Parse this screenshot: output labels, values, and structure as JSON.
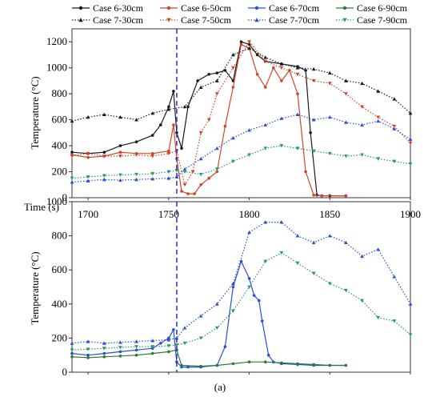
{
  "figure": {
    "caption": "(a)"
  },
  "legend": {
    "entries": [
      {
        "label": "Case 6-30cm",
        "color": "#1a1a1a",
        "marker": "circle",
        "dash": "solid"
      },
      {
        "label": "Case 6-50cm",
        "color": "#d2442a",
        "marker": "circle",
        "dash": "solid"
      },
      {
        "label": "Case 6-70cm",
        "color": "#2a4fd6",
        "marker": "circle",
        "dash": "solid"
      },
      {
        "label": "Case 6-90cm",
        "color": "#2c7a3c",
        "marker": "circle",
        "dash": "solid"
      },
      {
        "label": "Case 7-30cm",
        "color": "#1a1a1a",
        "marker": "triangle-up",
        "dash": "dotted"
      },
      {
        "label": "Case 7-50cm",
        "color": "#d2442a",
        "marker": "triangle-down",
        "dash": "dotted"
      },
      {
        "label": "Case 7-70cm",
        "color": "#2a4fd6",
        "marker": "triangle-up",
        "dash": "dotted"
      },
      {
        "label": "Case 7-90cm",
        "color": "#2c9a6a",
        "marker": "triangle-down",
        "dash": "dotted"
      }
    ]
  },
  "chart_data": [
    {
      "type": "line",
      "panel": "top",
      "xlabel": "Time (s)",
      "ylabel": "Temperature (°C)",
      "xlim": [
        1690,
        1900
      ],
      "ylim": [
        0,
        1300
      ],
      "xticks": [
        1700,
        1750,
        1800,
        1850,
        1900
      ],
      "yticks": [
        0,
        200,
        400,
        600,
        800,
        1000,
        1200
      ],
      "marker_line_x": 1755,
      "marker_line_color": "#2233cc",
      "series": [
        {
          "name": "Case 6-30cm",
          "color": "#1a1a1a",
          "marker": "circle",
          "dash": "solid",
          "x": [
            1690,
            1700,
            1710,
            1720,
            1730,
            1740,
            1745,
            1750,
            1753,
            1755,
            1758,
            1762,
            1768,
            1775,
            1780,
            1785,
            1790,
            1795,
            1800,
            1805,
            1810,
            1820,
            1830,
            1835,
            1838,
            1842,
            1845,
            1850,
            1860
          ],
          "y": [
            350,
            340,
            350,
            400,
            430,
            480,
            560,
            700,
            820,
            500,
            380,
            700,
            900,
            950,
            960,
            980,
            900,
            1200,
            1180,
            1100,
            1050,
            1030,
            1010,
            980,
            500,
            20,
            15,
            15,
            15
          ]
        },
        {
          "name": "Case 6-50cm",
          "color": "#d2442a",
          "marker": "circle",
          "dash": "solid",
          "x": [
            1690,
            1700,
            1710,
            1720,
            1730,
            1740,
            1750,
            1753,
            1755,
            1758,
            1762,
            1766,
            1770,
            1775,
            1780,
            1785,
            1790,
            1795,
            1800,
            1805,
            1810,
            1815,
            1820,
            1825,
            1830,
            1835,
            1840,
            1845,
            1860
          ],
          "y": [
            330,
            310,
            320,
            350,
            340,
            340,
            360,
            560,
            300,
            50,
            30,
            30,
            100,
            150,
            200,
            550,
            850,
            1180,
            1150,
            950,
            850,
            1000,
            900,
            980,
            800,
            200,
            20,
            15,
            15
          ]
        },
        {
          "name": "Case 7-30cm",
          "color": "#1a1a1a",
          "marker": "triangle-up",
          "dash": "dotted",
          "x": [
            1690,
            1700,
            1710,
            1720,
            1730,
            1740,
            1750,
            1760,
            1770,
            1780,
            1790,
            1800,
            1810,
            1820,
            1830,
            1840,
            1850,
            1860,
            1870,
            1880,
            1890,
            1900
          ],
          "y": [
            590,
            620,
            640,
            620,
            600,
            650,
            680,
            700,
            850,
            900,
            1100,
            1150,
            1080,
            1030,
            1000,
            990,
            960,
            900,
            880,
            820,
            760,
            650
          ]
        },
        {
          "name": "Case 7-50cm",
          "color": "#d2442a",
          "marker": "triangle-down",
          "dash": "dotted",
          "x": [
            1690,
            1700,
            1710,
            1720,
            1730,
            1740,
            1750,
            1755,
            1760,
            1765,
            1770,
            1775,
            1780,
            1790,
            1800,
            1810,
            1820,
            1830,
            1840,
            1850,
            1860,
            1870,
            1880,
            1890,
            1900
          ],
          "y": [
            320,
            340,
            320,
            320,
            330,
            320,
            340,
            360,
            100,
            200,
            500,
            600,
            800,
            1000,
            1200,
            1050,
            1000,
            950,
            900,
            880,
            800,
            700,
            620,
            550,
            420
          ]
        },
        {
          "name": "Case 7-70cm",
          "color": "#2a4fd6",
          "marker": "triangle-up",
          "dash": "dotted",
          "x": [
            1690,
            1700,
            1710,
            1720,
            1730,
            1740,
            1750,
            1755,
            1760,
            1770,
            1780,
            1790,
            1800,
            1810,
            1820,
            1830,
            1840,
            1850,
            1860,
            1870,
            1880,
            1890,
            1900
          ],
          "y": [
            120,
            130,
            140,
            135,
            140,
            145,
            150,
            160,
            220,
            300,
            380,
            460,
            520,
            560,
            610,
            640,
            600,
            620,
            580,
            560,
            590,
            530,
            450
          ]
        },
        {
          "name": "Case 7-90cm",
          "color": "#2c9a6a",
          "marker": "triangle-down",
          "dash": "dotted",
          "x": [
            1690,
            1700,
            1710,
            1720,
            1730,
            1740,
            1750,
            1755,
            1760,
            1770,
            1780,
            1790,
            1800,
            1810,
            1820,
            1830,
            1840,
            1850,
            1860,
            1870,
            1880,
            1890,
            1900
          ],
          "y": [
            150,
            160,
            170,
            175,
            180,
            185,
            200,
            210,
            200,
            180,
            220,
            280,
            330,
            380,
            400,
            380,
            360,
            340,
            320,
            330,
            300,
            280,
            260
          ]
        }
      ]
    },
    {
      "type": "line",
      "panel": "bottom",
      "xlabel": "Time (s)",
      "ylabel": "Temperature (°C)",
      "xlim": [
        1690,
        1900
      ],
      "ylim": [
        0,
        1000
      ],
      "xticks": [
        1700,
        1750,
        1800,
        1850,
        1900
      ],
      "yticks": [
        0,
        200,
        400,
        600,
        800,
        1000
      ],
      "yticklabels": [
        "0",
        "200",
        "400",
        "600",
        "800",
        "1000"
      ],
      "marker_line_x": 1755,
      "marker_line_color": "#2233cc",
      "series": [
        {
          "name": "Case 6-70cm",
          "color": "#2a4fd6",
          "marker": "circle",
          "dash": "solid",
          "x": [
            1690,
            1700,
            1710,
            1720,
            1730,
            1740,
            1745,
            1750,
            1753,
            1755,
            1758,
            1762,
            1770,
            1780,
            1785,
            1790,
            1795,
            1800,
            1803,
            1806,
            1808,
            1812,
            1815,
            1820,
            1830,
            1840,
            1850,
            1860
          ],
          "y": [
            110,
            100,
            110,
            120,
            130,
            140,
            170,
            200,
            250,
            60,
            30,
            30,
            30,
            40,
            150,
            500,
            650,
            550,
            450,
            420,
            300,
            100,
            60,
            50,
            45,
            40,
            40,
            40
          ]
        },
        {
          "name": "Case 6-90cm",
          "color": "#2c7a3c",
          "marker": "circle",
          "dash": "solid",
          "x": [
            1690,
            1700,
            1710,
            1720,
            1730,
            1740,
            1750,
            1755,
            1758,
            1770,
            1780,
            1790,
            1800,
            1810,
            1820,
            1830,
            1840,
            1850,
            1860
          ],
          "y": [
            90,
            85,
            90,
            95,
            100,
            110,
            120,
            130,
            40,
            35,
            40,
            50,
            60,
            60,
            55,
            50,
            45,
            40,
            40
          ]
        },
        {
          "name": "Case 7-70cm",
          "color": "#2a4fd6",
          "marker": "triangle-up",
          "dash": "dotted",
          "x": [
            1690,
            1700,
            1710,
            1720,
            1730,
            1740,
            1750,
            1755,
            1760,
            1770,
            1780,
            1790,
            1800,
            1810,
            1820,
            1830,
            1840,
            1850,
            1860,
            1870,
            1880,
            1890,
            1900
          ],
          "y": [
            170,
            180,
            170,
            175,
            180,
            185,
            190,
            200,
            260,
            330,
            400,
            520,
            820,
            880,
            880,
            800,
            760,
            800,
            760,
            680,
            720,
            560,
            400
          ]
        },
        {
          "name": "Case 7-90cm",
          "color": "#2c9a6a",
          "marker": "triangle-down",
          "dash": "dotted",
          "x": [
            1690,
            1700,
            1710,
            1720,
            1730,
            1740,
            1750,
            1755,
            1760,
            1770,
            1780,
            1790,
            1800,
            1810,
            1820,
            1830,
            1840,
            1850,
            1860,
            1870,
            1880,
            1890,
            1900
          ],
          "y": [
            130,
            135,
            140,
            145,
            150,
            150,
            155,
            160,
            170,
            200,
            260,
            360,
            500,
            650,
            700,
            640,
            580,
            520,
            480,
            420,
            320,
            300,
            220
          ]
        }
      ]
    }
  ]
}
